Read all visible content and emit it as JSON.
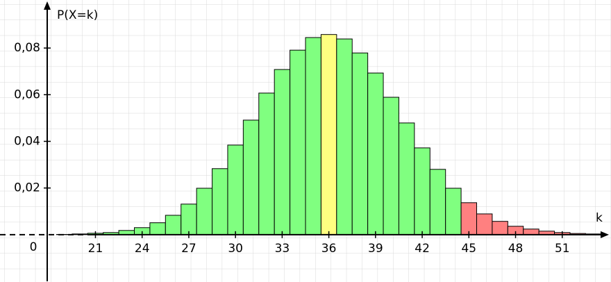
{
  "chart_data": {
    "type": "bar",
    "y_label": "P(X=k)",
    "x_label": "k",
    "origin_label": "0",
    "categories": [
      19,
      20,
      21,
      22,
      23,
      24,
      25,
      26,
      27,
      28,
      29,
      30,
      31,
      32,
      33,
      34,
      35,
      36,
      37,
      38,
      39,
      40,
      41,
      42,
      43,
      44,
      45,
      46,
      47,
      48,
      49,
      50,
      51,
      52,
      53
    ],
    "values": [
      0.0001,
      0.0003,
      0.0006,
      0.0009,
      0.0018,
      0.003,
      0.0051,
      0.0083,
      0.0131,
      0.0199,
      0.0283,
      0.0384,
      0.0491,
      0.0607,
      0.0708,
      0.0791,
      0.0845,
      0.0858,
      0.0839,
      0.0779,
      0.0693,
      0.0589,
      0.0479,
      0.0372,
      0.028,
      0.0199,
      0.0137,
      0.0089,
      0.0057,
      0.0036,
      0.0024,
      0.0015,
      0.0009,
      0.0005,
      0.0003
    ],
    "colors": [
      "#80ff80",
      "#80ff80",
      "#80ff80",
      "#80ff80",
      "#80ff80",
      "#80ff80",
      "#80ff80",
      "#80ff80",
      "#80ff80",
      "#80ff80",
      "#80ff80",
      "#80ff80",
      "#80ff80",
      "#80ff80",
      "#80ff80",
      "#80ff80",
      "#80ff80",
      "#ffff80",
      "#80ff80",
      "#80ff80",
      "#80ff80",
      "#80ff80",
      "#80ff80",
      "#80ff80",
      "#80ff80",
      "#80ff80",
      "#ff8080",
      "#ff8080",
      "#ff8080",
      "#ff8080",
      "#ff8080",
      "#ff8080",
      "#ff8080",
      "#ff8080",
      "#ff8080"
    ],
    "xlim": [
      17.9,
      54
    ],
    "ylim": [
      -0.02,
      0.1
    ],
    "xticks": [
      21,
      24,
      27,
      30,
      33,
      36,
      39,
      42,
      45,
      48,
      51
    ],
    "yticks": [
      {
        "value": 0.02,
        "label": "0,02"
      },
      {
        "value": 0.04,
        "label": "0,04"
      },
      {
        "value": 0.06,
        "label": "0,06"
      },
      {
        "value": 0.08,
        "label": "0,08"
      }
    ],
    "grid": true
  }
}
